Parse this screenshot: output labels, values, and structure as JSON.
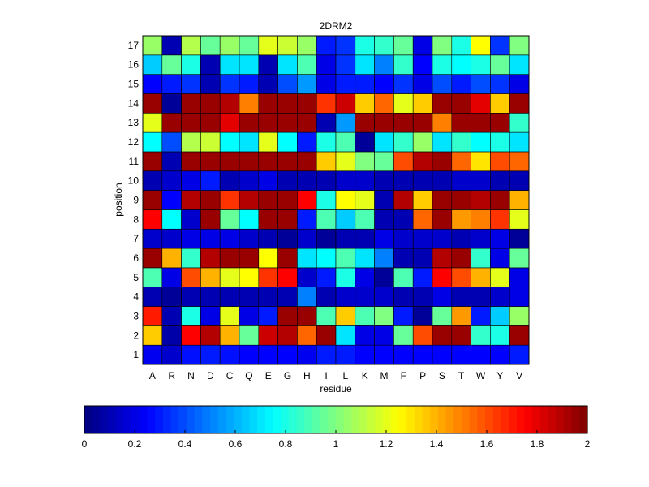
{
  "chart_data": {
    "type": "heatmap",
    "title": "2DRM2",
    "xlabel": "residue",
    "ylabel": "position",
    "x_categories": [
      "A",
      "R",
      "N",
      "D",
      "C",
      "Q",
      "E",
      "G",
      "H",
      "I",
      "L",
      "K",
      "M",
      "F",
      "P",
      "S",
      "T",
      "W",
      "Y",
      "V"
    ],
    "y_categories": [
      "1",
      "2",
      "3",
      "4",
      "5",
      "6",
      "7",
      "8",
      "9",
      "10",
      "11",
      "12",
      "13",
      "14",
      "15",
      "16",
      "17"
    ],
    "colormap": "jet",
    "colorbar": {
      "range": [
        0,
        2
      ],
      "ticks": [
        "0",
        "0.2",
        "0.4",
        "0.6",
        "0.8",
        "1",
        "1.2",
        "1.4",
        "1.6",
        "1.8",
        "2"
      ]
    },
    "values": [
      [
        0.22,
        0.15,
        0.28,
        0.3,
        0.28,
        0.25,
        0.25,
        0.25,
        0.22,
        0.3,
        0.3,
        0.25,
        0.25,
        0.25,
        0.25,
        0.25,
        0.25,
        0.25,
        0.25,
        0.3
      ],
      [
        1.35,
        0.08,
        1.75,
        1.9,
        1.4,
        0.95,
        1.85,
        1.9,
        1.55,
        1.95,
        0.7,
        0.2,
        0.2,
        0.95,
        1.6,
        1.95,
        1.95,
        0.85,
        0.8,
        1.95
      ],
      [
        1.7,
        0.1,
        0.8,
        0.2,
        1.2,
        0.2,
        0.3,
        1.95,
        1.95,
        0.9,
        1.35,
        0.9,
        1.0,
        0.3,
        0.05,
        0.95,
        1.45,
        0.3,
        0.65,
        1.05
      ],
      [
        0.1,
        0.05,
        0.1,
        0.1,
        0.1,
        0.1,
        0.1,
        0.1,
        0.5,
        0.1,
        0.15,
        0.15,
        0.15,
        0.1,
        0.1,
        0.2,
        0.1,
        0.1,
        0.15,
        0.2
      ],
      [
        0.9,
        0.2,
        1.6,
        1.4,
        1.2,
        1.25,
        1.65,
        1.75,
        0.15,
        0.3,
        0.8,
        0.2,
        0.05,
        0.9,
        0.3,
        1.75,
        1.6,
        1.4,
        1.2,
        0.2
      ],
      [
        1.95,
        1.4,
        0.85,
        1.9,
        1.95,
        1.95,
        1.25,
        1.95,
        0.7,
        0.75,
        0.9,
        0.7,
        0.5,
        0.1,
        0.1,
        1.9,
        1.95,
        0.85,
        0.2,
        0.95
      ],
      [
        0.15,
        0.15,
        0.2,
        0.2,
        0.2,
        0.15,
        0.1,
        0.05,
        0.15,
        0.05,
        0.1,
        0.1,
        0.2,
        0.15,
        0.15,
        0.15,
        0.1,
        0.15,
        0.2,
        0.05
      ],
      [
        1.75,
        0.75,
        0.15,
        1.95,
        0.95,
        0.75,
        1.95,
        1.95,
        0.3,
        0.9,
        0.65,
        0.9,
        0.1,
        0.1,
        1.55,
        1.95,
        1.45,
        1.5,
        1.65,
        1.2
      ],
      [
        1.95,
        0.25,
        1.9,
        1.95,
        1.65,
        1.9,
        1.95,
        1.95,
        1.75,
        0.8,
        1.25,
        1.2,
        0.1,
        1.9,
        1.35,
        1.95,
        1.95,
        1.9,
        1.95,
        1.4
      ],
      [
        0.1,
        0.15,
        0.2,
        0.3,
        0.1,
        0.15,
        0.2,
        0.1,
        0.1,
        0.1,
        0.15,
        0.15,
        0.1,
        0.1,
        0.1,
        0.1,
        0.15,
        0.15,
        0.1,
        0.1
      ],
      [
        1.95,
        0.1,
        1.95,
        1.95,
        1.95,
        1.95,
        1.95,
        1.95,
        1.95,
        1.35,
        1.2,
        1.0,
        0.95,
        1.6,
        1.9,
        1.95,
        1.55,
        1.3,
        1.6,
        1.55
      ],
      [
        0.75,
        0.4,
        1.1,
        1.15,
        0.75,
        0.7,
        1.2,
        0.75,
        0.3,
        0.8,
        0.9,
        0.05,
        0.7,
        0.85,
        1.05,
        0.7,
        0.85,
        0.75,
        0.8,
        0.7
      ],
      [
        1.2,
        1.95,
        1.95,
        1.95,
        1.8,
        1.95,
        1.95,
        1.95,
        1.95,
        0.1,
        0.55,
        1.95,
        1.95,
        1.95,
        1.95,
        1.5,
        1.95,
        1.95,
        1.95,
        0.85
      ],
      [
        1.95,
        0.05,
        1.95,
        1.95,
        1.9,
        1.5,
        1.95,
        1.95,
        1.95,
        1.65,
        1.85,
        1.35,
        1.55,
        1.2,
        1.35,
        1.95,
        1.95,
        1.8,
        1.35,
        1.95
      ],
      [
        0.25,
        0.3,
        0.35,
        0.1,
        0.35,
        0.3,
        0.1,
        0.4,
        0.55,
        0.2,
        0.3,
        0.3,
        0.25,
        0.35,
        0.2,
        0.4,
        0.3,
        0.4,
        0.35,
        0.2
      ],
      [
        0.65,
        0.95,
        0.8,
        0.1,
        0.7,
        0.7,
        0.1,
        0.7,
        0.9,
        0.2,
        0.35,
        0.7,
        0.5,
        0.85,
        0.25,
        0.8,
        0.75,
        0.8,
        0.95,
        0.7
      ],
      [
        1.05,
        0.1,
        1.1,
        0.95,
        1.05,
        0.95,
        1.2,
        1.15,
        1.05,
        0.3,
        0.35,
        0.8,
        0.85,
        0.95,
        0.2,
        1.0,
        0.8,
        1.25,
        0.35,
        1.0
      ]
    ]
  }
}
